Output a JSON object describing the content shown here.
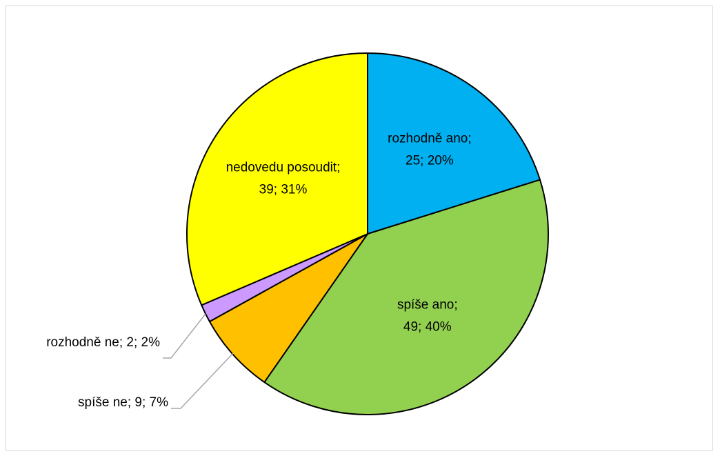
{
  "chart_data": {
    "type": "pie",
    "title": "",
    "start_angle_deg": 0,
    "direction": "clockwise",
    "slices": [
      {
        "category": "rozhodně ano",
        "value": 25,
        "percent": 20,
        "label": "rozhodně ano;|25; 20%",
        "color": "#00B0F0",
        "label_placement": "inside"
      },
      {
        "category": "spíše ano",
        "value": 49,
        "percent": 40,
        "label": "spíše ano;|49; 40%",
        "color": "#92D050",
        "label_placement": "inside"
      },
      {
        "category": "spíše ne",
        "value": 9,
        "percent": 7,
        "label": "spíše ne; 9; 7%",
        "color": "#FFC000",
        "label_placement": "outside-left"
      },
      {
        "category": "rozhodně ne",
        "value": 2,
        "percent": 2,
        "label": "rozhodně ne; 2; 2%",
        "color": "#CC99FF",
        "label_placement": "outside-left"
      },
      {
        "category": "nedovedu posoudit",
        "value": 39,
        "percent": 31,
        "label": "nedovedu posoudit;|39; 31%",
        "color": "#FFFF00",
        "label_placement": "inside"
      }
    ],
    "legend": "none",
    "border_color": "#000000",
    "leader_line_color": "#a6a6a6"
  }
}
